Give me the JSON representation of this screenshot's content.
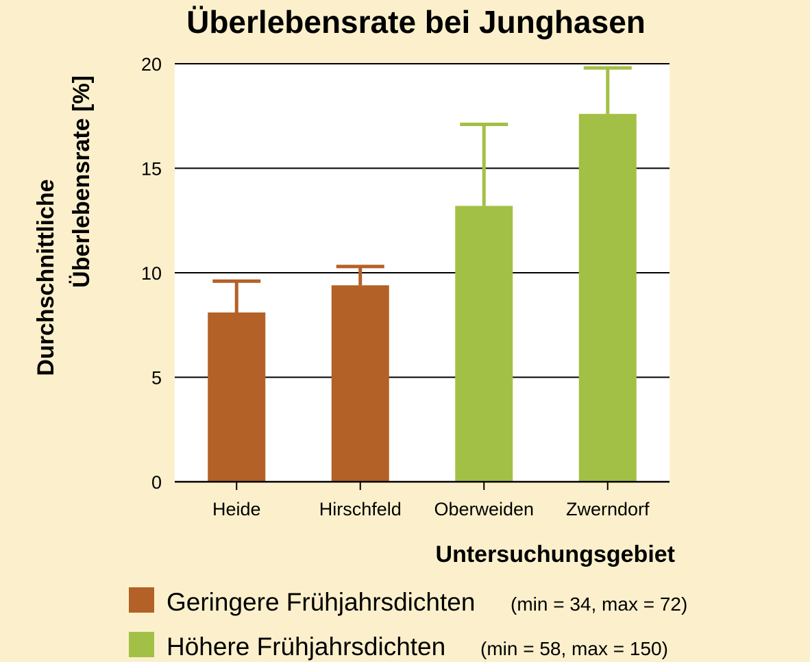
{
  "chart_data": {
    "type": "bar",
    "title": "Überlebensrate bei Junghasen",
    "ylabel_lines": [
      "Durchschnittliche",
      "Überlebensrate [%]"
    ],
    "xlabel": "Untersuchungsgebiet",
    "ylim": [
      0,
      20
    ],
    "yticks": [
      0,
      5,
      10,
      15,
      20
    ],
    "grid": true,
    "categories": [
      "Heide",
      "Hirschfeld",
      "Oberweiden",
      "Zwerndorf"
    ],
    "values": [
      8.1,
      9.4,
      13.2,
      17.6
    ],
    "error_upper": [
      9.6,
      10.3,
      17.1,
      19.8
    ],
    "groups": [
      "geringere",
      "geringere",
      "hoehere",
      "hoehere"
    ],
    "colors": {
      "geringere": "#b46127",
      "hoehere": "#a3c046"
    },
    "legend": {
      "placement": "bottom",
      "items": [
        {
          "group": "geringere",
          "label": "Geringere Frühjahrsdichten",
          "note": "(min = 34, max = 72)"
        },
        {
          "group": "hoehere",
          "label": "Höhere Frühjahrsdichten",
          "note": "(min = 58, max = 150)"
        }
      ]
    }
  }
}
